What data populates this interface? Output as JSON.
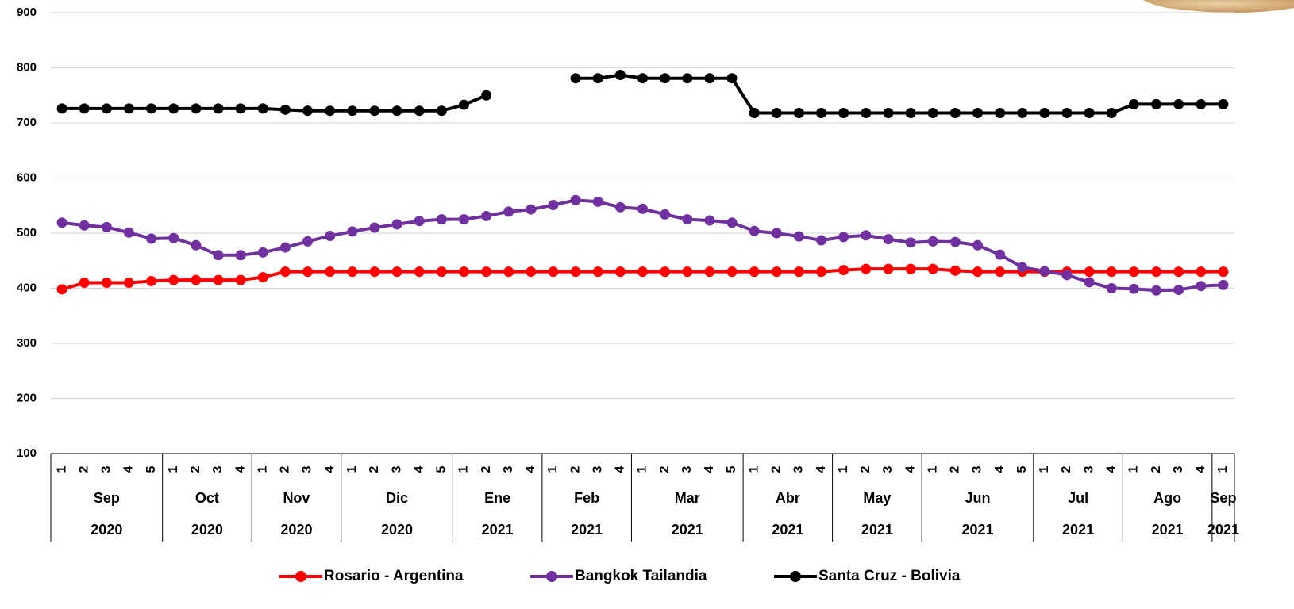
{
  "chart_data": {
    "type": "line",
    "categories": [
      "1",
      "2",
      "3",
      "4",
      "5",
      "1",
      "2",
      "3",
      "4",
      "1",
      "2",
      "3",
      "4",
      "1",
      "2",
      "3",
      "4",
      "5",
      "1",
      "2",
      "3",
      "4",
      "1",
      "2",
      "3",
      "4",
      "1",
      "2",
      "3",
      "4",
      "5",
      "1",
      "2",
      "3",
      "4",
      "1",
      "2",
      "3",
      "4",
      "1",
      "2",
      "3",
      "4",
      "5",
      "1",
      "2",
      "3",
      "4",
      "1",
      "2",
      "3",
      "4",
      "1"
    ],
    "months": [
      "Sep",
      null,
      null,
      null,
      null,
      "Oct",
      null,
      null,
      null,
      "Nov",
      null,
      null,
      null,
      "Dic",
      null,
      null,
      null,
      null,
      "Ene",
      null,
      null,
      null,
      "Feb",
      null,
      null,
      null,
      "Mar",
      null,
      null,
      null,
      null,
      "Abr",
      null,
      null,
      null,
      "May",
      null,
      null,
      null,
      "Jun",
      null,
      null,
      null,
      null,
      "Jul",
      null,
      null,
      null,
      "Ago",
      null,
      null,
      null,
      "Sep"
    ],
    "years": [
      "2020",
      null,
      null,
      null,
      null,
      "2020",
      null,
      null,
      null,
      "2020",
      null,
      null,
      null,
      "2020",
      null,
      null,
      null,
      null,
      "2021",
      null,
      null,
      null,
      "2021",
      null,
      null,
      null,
      "2021",
      null,
      null,
      null,
      null,
      "2021",
      null,
      null,
      null,
      "2021",
      null,
      null,
      null,
      "2021",
      null,
      null,
      null,
      null,
      "2021",
      null,
      null,
      null,
      "2021",
      null,
      null,
      null,
      "2021"
    ],
    "series": [
      {
        "name": "Rosario - Argentina",
        "color": "#ff0000",
        "values": [
          398,
          410,
          410,
          410,
          413,
          415,
          415,
          415,
          415,
          420,
          430,
          430,
          430,
          430,
          430,
          430,
          430,
          430,
          430,
          430,
          430,
          430,
          430,
          430,
          430,
          430,
          430,
          430,
          430,
          430,
          430,
          430,
          430,
          430,
          430,
          433,
          435,
          435,
          435,
          435,
          432,
          430,
          430,
          430,
          430,
          430,
          430,
          430,
          430,
          430,
          430,
          430,
          430
        ]
      },
      {
        "name": "Bangkok Tailandia",
        "color": "#7030a0",
        "values": [
          519,
          514,
          511,
          501,
          490,
          491,
          478,
          460,
          460,
          465,
          474,
          485,
          495,
          503,
          510,
          516,
          522,
          525,
          525,
          531,
          539,
          543,
          551,
          560,
          557,
          547,
          544,
          534,
          525,
          523,
          519,
          504,
          500,
          494,
          487,
          493,
          496,
          489,
          483,
          485,
          484,
          478,
          461,
          438,
          431,
          424,
          411,
          400,
          399,
          396,
          397,
          404,
          406
        ]
      },
      {
        "name": "Santa Cruz - Bolivia",
        "color": "#000000",
        "values": [
          726,
          726,
          726,
          726,
          726,
          726,
          726,
          726,
          726,
          726,
          724,
          722,
          722,
          722,
          722,
          722,
          722,
          722,
          733,
          750,
          null,
          null,
          null,
          781,
          781,
          787,
          781,
          781,
          781,
          781,
          781,
          718,
          718,
          718,
          718,
          718,
          718,
          718,
          718,
          718,
          718,
          718,
          718,
          718,
          718,
          718,
          718,
          718,
          734,
          734,
          734,
          734,
          734
        ]
      }
    ],
    "ylim": [
      100,
      900
    ],
    "yticks": [
      100,
      200,
      300,
      400,
      500,
      600,
      700,
      800,
      900
    ],
    "grid": true,
    "legend": "bottom"
  }
}
